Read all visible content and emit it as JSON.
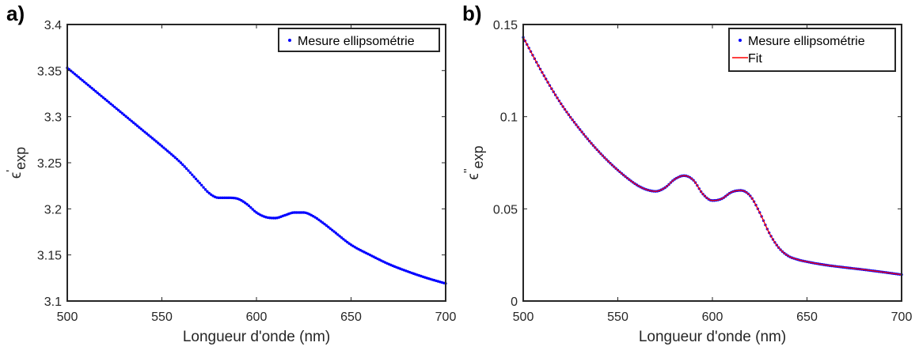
{
  "chart_data": [
    {
      "panel_label": "a)",
      "type": "line",
      "xlabel": "Longueur d'onde (nm)",
      "ylabel": {
        "base": "ϵ",
        "sup": "'",
        "sub": "exp"
      },
      "xlim": [
        500,
        700
      ],
      "ylim": [
        3.1,
        3.4
      ],
      "xticks": [
        500,
        550,
        600,
        650,
        700
      ],
      "yticks": [
        3.1,
        3.15,
        3.2,
        3.25,
        3.3,
        3.35,
        3.4
      ],
      "xtick_labels": [
        "500",
        "550",
        "600",
        "650",
        "700"
      ],
      "ytick_labels": [
        "3.1",
        "3.15",
        "3.2",
        "3.25",
        "3.3",
        "3.35",
        "3.4"
      ],
      "legend_position": "top-right",
      "series": [
        {
          "name": "Mesure ellipsométrie",
          "style": "dots",
          "color": "#0000ff",
          "x": [
            500,
            510,
            520,
            530,
            540,
            550,
            560,
            570,
            575,
            580,
            585,
            590,
            595,
            600,
            605,
            610,
            615,
            620,
            625,
            630,
            635,
            640,
            650,
            660,
            670,
            680,
            690,
            700
          ],
          "y": [
            3.353,
            3.336,
            3.319,
            3.302,
            3.285,
            3.268,
            3.25,
            3.228,
            3.217,
            3.212,
            3.212,
            3.211,
            3.205,
            3.196,
            3.191,
            3.19,
            3.193,
            3.196,
            3.196,
            3.192,
            3.185,
            3.177,
            3.161,
            3.15,
            3.14,
            3.132,
            3.125,
            3.119
          ]
        }
      ]
    },
    {
      "panel_label": "b)",
      "type": "line",
      "xlabel": "Longueur d'onde (nm)",
      "ylabel": {
        "base": "ϵ",
        "sup": "''",
        "sub": "exp"
      },
      "xlim": [
        500,
        700
      ],
      "ylim": [
        0,
        0.15
      ],
      "xticks": [
        500,
        550,
        600,
        650,
        700
      ],
      "yticks": [
        0,
        0.05,
        0.1,
        0.15
      ],
      "xtick_labels": [
        "500",
        "550",
        "600",
        "650",
        "700"
      ],
      "ytick_labels": [
        "0",
        "0.05",
        "0.1",
        "0.15"
      ],
      "legend_position": "top-right",
      "series": [
        {
          "name": "Mesure ellipsométrie",
          "style": "dots",
          "color": "#0000ff",
          "x": [
            500,
            510,
            520,
            530,
            540,
            550,
            560,
            565,
            570,
            575,
            580,
            585,
            590,
            595,
            600,
            605,
            610,
            615,
            620,
            625,
            630,
            635,
            640,
            645,
            650,
            660,
            670,
            680,
            690,
            700
          ],
          "y": [
            0.143,
            0.124,
            0.107,
            0.093,
            0.081,
            0.071,
            0.063,
            0.0605,
            0.0595,
            0.0615,
            0.066,
            0.068,
            0.0655,
            0.058,
            0.0545,
            0.0555,
            0.059,
            0.06,
            0.057,
            0.048,
            0.037,
            0.029,
            0.0245,
            0.0225,
            0.0213,
            0.0195,
            0.0182,
            0.017,
            0.0157,
            0.0143
          ]
        },
        {
          "name": "Fit",
          "style": "line",
          "color": "#ff0000",
          "x": [
            500,
            510,
            520,
            530,
            540,
            550,
            560,
            565,
            570,
            575,
            580,
            585,
            590,
            595,
            600,
            605,
            610,
            615,
            620,
            625,
            630,
            635,
            640,
            645,
            650,
            660,
            670,
            680,
            690,
            700
          ],
          "y": [
            0.143,
            0.124,
            0.107,
            0.093,
            0.081,
            0.071,
            0.063,
            0.0605,
            0.0595,
            0.0615,
            0.066,
            0.068,
            0.0655,
            0.058,
            0.0545,
            0.0555,
            0.059,
            0.06,
            0.057,
            0.048,
            0.037,
            0.029,
            0.0245,
            0.0225,
            0.0213,
            0.0195,
            0.0182,
            0.017,
            0.0157,
            0.0143
          ]
        }
      ]
    }
  ]
}
